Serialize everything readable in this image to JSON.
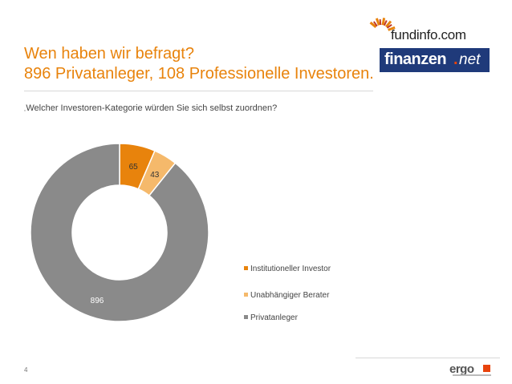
{
  "slide": {
    "title_line1": "Wen haben wir befragt?",
    "title_line2": "896 Privatanleger, 108 Professionelle Investoren.",
    "question_mark": "„",
    "question": "Welcher Investoren-Kategorie würden Sie sich selbst zuordnen?",
    "page_number": "4"
  },
  "logos": {
    "fundinfo": "fundinfo.com",
    "finanzen_main": "finanzen",
    "finanzen_dot": ".",
    "finanzen_net": "net",
    "ergo": "ergo"
  },
  "colors": {
    "accent": "#e8830c",
    "institutional": "#e8830c",
    "advisor": "#f5b96b",
    "private": "#8a8a8a"
  },
  "chart_data": {
    "type": "pie",
    "variant": "donut",
    "categories": [
      "Institutioneller Investor",
      "Unabhängiger Berater",
      "Privatanleger"
    ],
    "values": [
      65,
      43,
      896
    ],
    "data_labels": [
      "65",
      "43",
      "896"
    ],
    "legend_position": "right"
  }
}
